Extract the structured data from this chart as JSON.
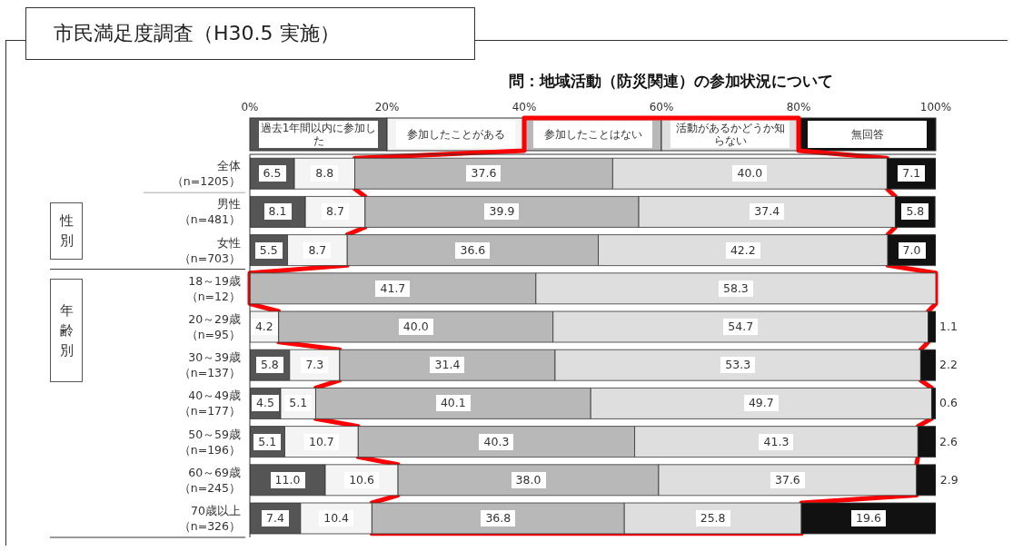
{
  "chart_data": {
    "type": "bar",
    "title": "市民満足度調査（H30.5 実施）",
    "subtitle": "問：地域活動（防災関連）の参加状況について",
    "orientation": "horizontal",
    "stacked": true,
    "legend": "top",
    "categories": [
      "全体（n=1205）",
      "男性（n=481）",
      "女性（n=703）",
      "18～19歳（n=12）",
      "20～29歳（n=95）",
      "30～39歳（n=137）",
      "40～49歳（n=177）",
      "50～59歳（n=196）",
      "60～69歳（n=245）",
      "70歳以上（n=326）"
    ],
    "xlim": [
      0,
      100
    ],
    "xticks": [
      {
        "value": 0,
        "label": "0%"
      },
      {
        "value": 20,
        "label": "20%"
      },
      {
        "value": 40,
        "label": "40%"
      },
      {
        "value": 60,
        "label": "60%"
      },
      {
        "value": 80,
        "label": "80%"
      },
      {
        "value": 100,
        "label": "100%"
      }
    ],
    "series": [
      {
        "name": "過去1年間以内に参加した",
        "color": "#555555",
        "values": [
          6.5,
          8.1,
          5.5,
          0,
          0,
          5.8,
          4.5,
          5.1,
          11.0,
          7.4
        ],
        "value_labels": [
          "6.5",
          "8.1",
          "5.5",
          null,
          null,
          "5.8",
          "4.5",
          "5.1",
          "11.0",
          "7.4"
        ]
      },
      {
        "name": "参加したことがある",
        "color": "#f4f4f4",
        "values": [
          8.8,
          8.7,
          8.7,
          0,
          4.2,
          7.3,
          5.1,
          10.7,
          10.6,
          10.4
        ],
        "value_labels": [
          "8.8",
          "8.7",
          "8.7",
          null,
          "4.2",
          "7.3",
          "5.1",
          "10.7",
          "10.6",
          "10.4"
        ]
      },
      {
        "name": "参加したことはない",
        "color": "#b8b8b8",
        "values": [
          37.6,
          39.9,
          36.6,
          41.7,
          40.0,
          31.4,
          40.1,
          40.3,
          38.0,
          36.8
        ],
        "value_labels": [
          "37.6",
          "39.9",
          "36.6",
          "41.7",
          "40.0",
          "31.4",
          "40.1",
          "40.3",
          "38.0",
          "36.8"
        ]
      },
      {
        "name": "活動があるかどうか知らない",
        "color": "#dedede",
        "values": [
          40.0,
          37.4,
          42.2,
          58.3,
          54.7,
          53.3,
          49.7,
          41.3,
          37.6,
          25.8
        ],
        "value_labels": [
          "40.0",
          "37.4",
          "42.2",
          "58.3",
          "54.7",
          "53.3",
          "49.7",
          "41.3",
          "37.6",
          "25.8"
        ]
      },
      {
        "name": "無回答",
        "color": "#111111",
        "values": [
          7.1,
          5.8,
          7.0,
          0,
          1.1,
          2.2,
          0.6,
          2.6,
          2.9,
          19.6
        ],
        "value_labels": [
          "7.1",
          "5.8",
          "7.0",
          null,
          "1.1",
          "2.2",
          "0.6",
          "2.6",
          "2.9",
          "19.6"
        ]
      }
    ],
    "annotations": [
      "性別",
      "年齢別"
    ]
  }
}
